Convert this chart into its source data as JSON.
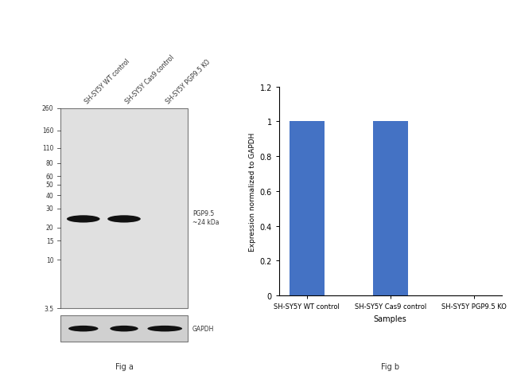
{
  "fig_a": {
    "ladder_labels": [
      "260",
      "160",
      "110",
      "80",
      "60",
      "50",
      "40",
      "30",
      "20",
      "15",
      "10",
      "3.5"
    ],
    "ladder_kda": [
      260,
      160,
      110,
      80,
      60,
      50,
      40,
      30,
      20,
      15,
      10,
      3.5
    ],
    "lane_labels": [
      "SH-SY5Y WT control",
      "SH-SY5Y Cas9 control",
      "SH-SY5Y PGP9.5 KO"
    ],
    "band_pgp_lanes": [
      0,
      1
    ],
    "pgp_label": "PGP9.5\n~24 kDa",
    "gapdh_label": "GAPDH",
    "fig_label": "Fig a",
    "gel_bg": "#e0e0e0",
    "gapdh_bg": "#d0d0d0",
    "band_color": "#111111"
  },
  "fig_b": {
    "categories": [
      "SH-SY5Y WT control",
      "SH-SY5Y Cas9 control",
      "SH-SY5Y PGP9.5 KO"
    ],
    "values": [
      1.0,
      1.0,
      0.0
    ],
    "bar_color": "#4472c4",
    "ylim": [
      0,
      1.2
    ],
    "yticks": [
      0,
      0.2,
      0.4,
      0.6,
      0.8,
      1.0,
      1.2
    ],
    "ylabel": "Expression normalized to GAPDH",
    "xlabel": "Samples",
    "fig_label": "Fig b"
  }
}
